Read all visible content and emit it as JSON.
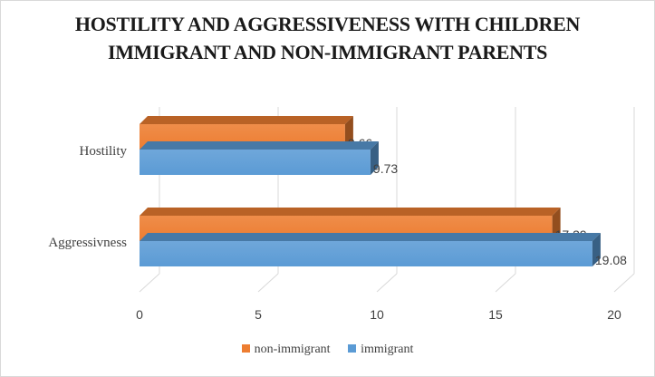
{
  "chart_data": {
    "type": "bar",
    "orientation": "horizontal",
    "style": "3d",
    "title_line1": "HOSTILITY AND AGGRESSIVENESS WITH CHILDREN",
    "title_line2": "IMMIGRANT AND NON-IMMIGRANT PARENTS",
    "categories": [
      "Hostility",
      "Aggressivness"
    ],
    "series": [
      {
        "name": "non-immigrant",
        "values": [
          8.66,
          17.39
        ],
        "value_labels": [
          "8.66",
          "17.39"
        ],
        "color": "#ED7D31"
      },
      {
        "name": "immigrant",
        "values": [
          9.73,
          19.08
        ],
        "value_labels": [
          "9.73",
          "19.08"
        ],
        "color": "#5B9BD5"
      }
    ],
    "xlim": [
      0,
      20
    ],
    "x_ticks": [
      "0",
      "5",
      "10",
      "15",
      "20"
    ],
    "grid": true,
    "legend_position": "bottom"
  }
}
